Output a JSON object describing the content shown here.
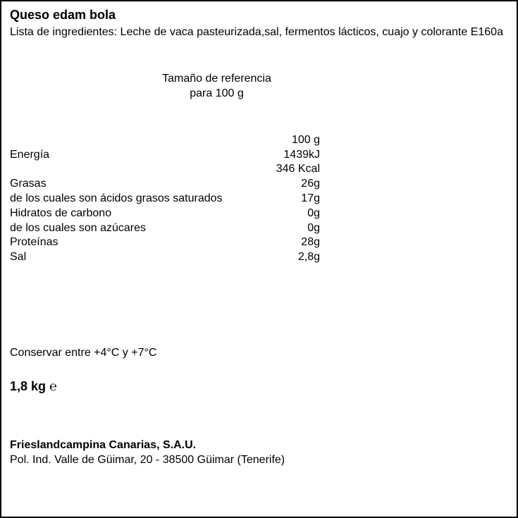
{
  "title": "Queso edam bola",
  "ingredients_label": "Lista de ingredientes: ",
  "ingredients_text": "Leche de vaca pasteurizada,sal, fermentos lácticos, cuajo y colorante E160a",
  "reference_line1": "Tamaño de referencia",
  "reference_line2": "para 100 g",
  "header_col": "100 g",
  "rows": [
    {
      "label": "Energía",
      "value": "1439kJ"
    },
    {
      "label": "",
      "value": "346 Kcal"
    },
    {
      "label": "Grasas",
      "value": "26g"
    },
    {
      "label": "de los cuales son ácidos grasos saturados",
      "value": "17g"
    },
    {
      "label": "Hidratos de carbono",
      "value": "0g"
    },
    {
      "label": "de los cuales son azúcares",
      "value": "0g"
    },
    {
      "label": "Proteínas",
      "value": "28g"
    },
    {
      "label": "Sal",
      "value": "2,8g"
    }
  ],
  "storage": "Conservar entre +4°C y +7°C",
  "weight": "1,8 kg ℮",
  "company": "Frieslandcampina Canarias, S.A.U.",
  "address": "Pol. Ind. Valle de Güimar, 20 - 38500 Güimar (Tenerife)"
}
